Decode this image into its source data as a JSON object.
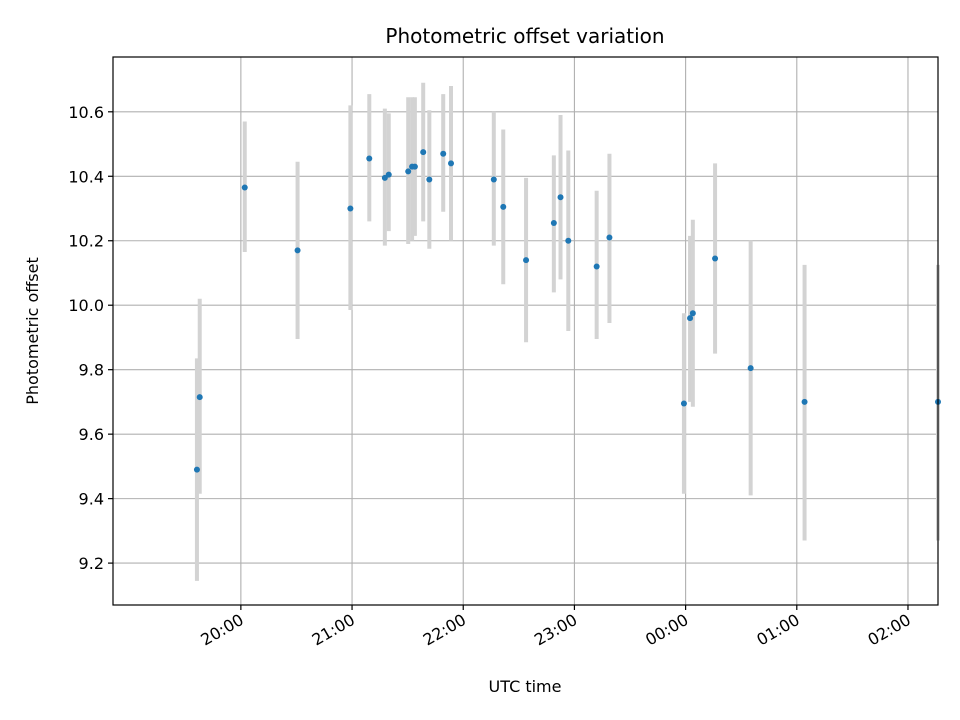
{
  "chart_data": {
    "type": "scatter",
    "title": "Photometric offset variation",
    "xlabel": "UTC time",
    "ylabel": "Photometric offset",
    "x_unit": "hours UTC since 00:00 of the first night",
    "xlim": [
      18.85,
      26.27
    ],
    "ylim": [
      9.07,
      10.77
    ],
    "grid": true,
    "colors": {
      "point": "#1f77b4",
      "errorbar": "#d3d3d3"
    },
    "x_ticks": [
      {
        "value": 20,
        "label": "20:00"
      },
      {
        "value": 21,
        "label": "21:00"
      },
      {
        "value": 22,
        "label": "22:00"
      },
      {
        "value": 23,
        "label": "23:00"
      },
      {
        "value": 24,
        "label": "00:00"
      },
      {
        "value": 25,
        "label": "01:00"
      },
      {
        "value": 26,
        "label": "02:00"
      }
    ],
    "y_ticks": [
      {
        "value": 9.2,
        "label": "9.2"
      },
      {
        "value": 9.4,
        "label": "9.4"
      },
      {
        "value": 9.6,
        "label": "9.6"
      },
      {
        "value": 9.8,
        "label": "9.8"
      },
      {
        "value": 10.0,
        "label": "10.0"
      },
      {
        "value": 10.2,
        "label": "10.2"
      },
      {
        "value": 10.4,
        "label": "10.4"
      },
      {
        "value": 10.6,
        "label": "10.6"
      }
    ],
    "points": [
      {
        "x": 19.605,
        "y": 9.49,
        "err_low": 9.145,
        "err_high": 9.835
      },
      {
        "x": 19.63,
        "y": 9.715,
        "err_low": 9.415,
        "err_high": 10.02
      },
      {
        "x": 20.035,
        "y": 10.365,
        "err_low": 10.165,
        "err_high": 10.57
      },
      {
        "x": 20.51,
        "y": 10.17,
        "err_low": 9.895,
        "err_high": 10.445
      },
      {
        "x": 20.985,
        "y": 10.3,
        "err_low": 9.985,
        "err_high": 10.62
      },
      {
        "x": 21.155,
        "y": 10.455,
        "err_low": 10.26,
        "err_high": 10.655
      },
      {
        "x": 21.295,
        "y": 10.395,
        "err_low": 10.185,
        "err_high": 10.61
      },
      {
        "x": 21.33,
        "y": 10.405,
        "err_low": 10.23,
        "err_high": 10.595
      },
      {
        "x": 21.505,
        "y": 10.415,
        "err_low": 10.19,
        "err_high": 10.645
      },
      {
        "x": 21.54,
        "y": 10.43,
        "err_low": 10.2,
        "err_high": 10.645
      },
      {
        "x": 21.565,
        "y": 10.43,
        "err_low": 10.215,
        "err_high": 10.645
      },
      {
        "x": 21.64,
        "y": 10.475,
        "err_low": 10.26,
        "err_high": 10.69
      },
      {
        "x": 21.695,
        "y": 10.39,
        "err_low": 10.175,
        "err_high": 10.605
      },
      {
        "x": 21.82,
        "y": 10.47,
        "err_low": 10.29,
        "err_high": 10.655
      },
      {
        "x": 21.89,
        "y": 10.44,
        "err_low": 10.2,
        "err_high": 10.68
      },
      {
        "x": 22.275,
        "y": 10.39,
        "err_low": 10.185,
        "err_high": 10.6
      },
      {
        "x": 22.36,
        "y": 10.305,
        "err_low": 10.065,
        "err_high": 10.545
      },
      {
        "x": 22.565,
        "y": 10.14,
        "err_low": 9.885,
        "err_high": 10.395
      },
      {
        "x": 22.815,
        "y": 10.255,
        "err_low": 10.04,
        "err_high": 10.465
      },
      {
        "x": 22.875,
        "y": 10.335,
        "err_low": 10.08,
        "err_high": 10.59
      },
      {
        "x": 22.945,
        "y": 10.2,
        "err_low": 9.92,
        "err_high": 10.48
      },
      {
        "x": 23.2,
        "y": 10.12,
        "err_low": 9.895,
        "err_high": 10.355
      },
      {
        "x": 23.315,
        "y": 10.21,
        "err_low": 9.945,
        "err_high": 10.47
      },
      {
        "x": 23.985,
        "y": 9.695,
        "err_low": 9.415,
        "err_high": 9.975
      },
      {
        "x": 24.04,
        "y": 9.96,
        "err_low": 9.7,
        "err_high": 10.215
      },
      {
        "x": 24.065,
        "y": 9.975,
        "err_low": 9.685,
        "err_high": 10.265
      },
      {
        "x": 24.265,
        "y": 10.145,
        "err_low": 9.85,
        "err_high": 10.44
      },
      {
        "x": 24.585,
        "y": 9.805,
        "err_low": 9.41,
        "err_high": 10.2
      },
      {
        "x": 25.07,
        "y": 9.7,
        "err_low": 9.27,
        "err_high": 10.125
      },
      {
        "x": 26.47,
        "y": 9.7,
        "err_low": 9.27,
        "err_high": 10.125
      }
    ]
  }
}
